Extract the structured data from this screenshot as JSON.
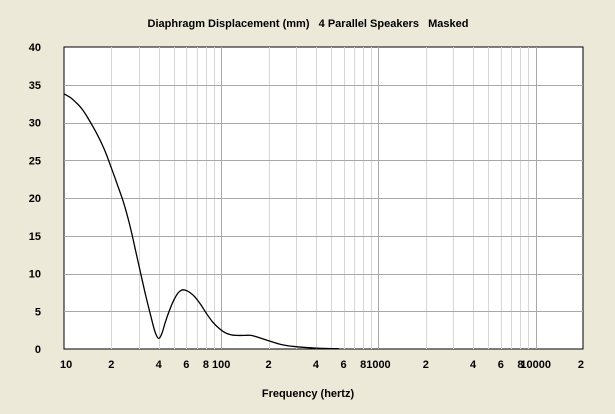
{
  "chart_data": {
    "type": "line",
    "title": "Diaphragm Displacement (mm)   4 Parallel Speakers   Masked",
    "xlabel": "Frequency (hertz)",
    "ylabel": "",
    "x_scale": "log",
    "xlim": [
      10,
      20000
    ],
    "ylim": [
      0,
      40
    ],
    "grid": true,
    "yticks": [
      "0",
      "5",
      "10",
      "15",
      "20",
      "25",
      "30",
      "35",
      "40"
    ],
    "xticks": [
      {
        "value": 10,
        "label": "10"
      },
      {
        "value": 20,
        "label": "2"
      },
      {
        "value": 40,
        "label": "4"
      },
      {
        "value": 60,
        "label": "6"
      },
      {
        "value": 80,
        "label": "8"
      },
      {
        "value": 100,
        "label": "100"
      },
      {
        "value": 200,
        "label": "2"
      },
      {
        "value": 400,
        "label": "4"
      },
      {
        "value": 600,
        "label": "6"
      },
      {
        "value": 800,
        "label": "8"
      },
      {
        "value": 1000,
        "label": "1000"
      },
      {
        "value": 2000,
        "label": "2"
      },
      {
        "value": 4000,
        "label": "4"
      },
      {
        "value": 6000,
        "label": "6"
      },
      {
        "value": 8000,
        "label": "8"
      },
      {
        "value": 10000,
        "label": "10000"
      },
      {
        "value": 20000,
        "label": "2"
      }
    ],
    "series": [
      {
        "values": [
          [
            10,
            33.8
          ],
          [
            11,
            33.3
          ],
          [
            12,
            32.6
          ],
          [
            13,
            31.8
          ],
          [
            14,
            30.8
          ],
          [
            16,
            28.7
          ],
          [
            18,
            26.5
          ],
          [
            20,
            24.0
          ],
          [
            22,
            21.6
          ],
          [
            24,
            19.3
          ],
          [
            26,
            16.7
          ],
          [
            28,
            13.8
          ],
          [
            30,
            11.0
          ],
          [
            33,
            7.2
          ],
          [
            36,
            4.0
          ],
          [
            38,
            2.2
          ],
          [
            40,
            1.4
          ],
          [
            42,
            2.1
          ],
          [
            44,
            3.5
          ],
          [
            47,
            5.2
          ],
          [
            50,
            6.5
          ],
          [
            53,
            7.4
          ],
          [
            56,
            7.8
          ],
          [
            59,
            7.8
          ],
          [
            63,
            7.5
          ],
          [
            68,
            6.9
          ],
          [
            74,
            5.9
          ],
          [
            80,
            4.8
          ],
          [
            88,
            3.6
          ],
          [
            95,
            2.9
          ],
          [
            105,
            2.2
          ],
          [
            115,
            1.9
          ],
          [
            125,
            1.8
          ],
          [
            140,
            1.8
          ],
          [
            155,
            1.8
          ],
          [
            175,
            1.5
          ],
          [
            200,
            1.1
          ],
          [
            240,
            0.6
          ],
          [
            300,
            0.3
          ],
          [
            380,
            0.15
          ],
          [
            450,
            0.08
          ],
          [
            520,
            0.05
          ],
          [
            560,
            0.04
          ]
        ]
      }
    ]
  }
}
